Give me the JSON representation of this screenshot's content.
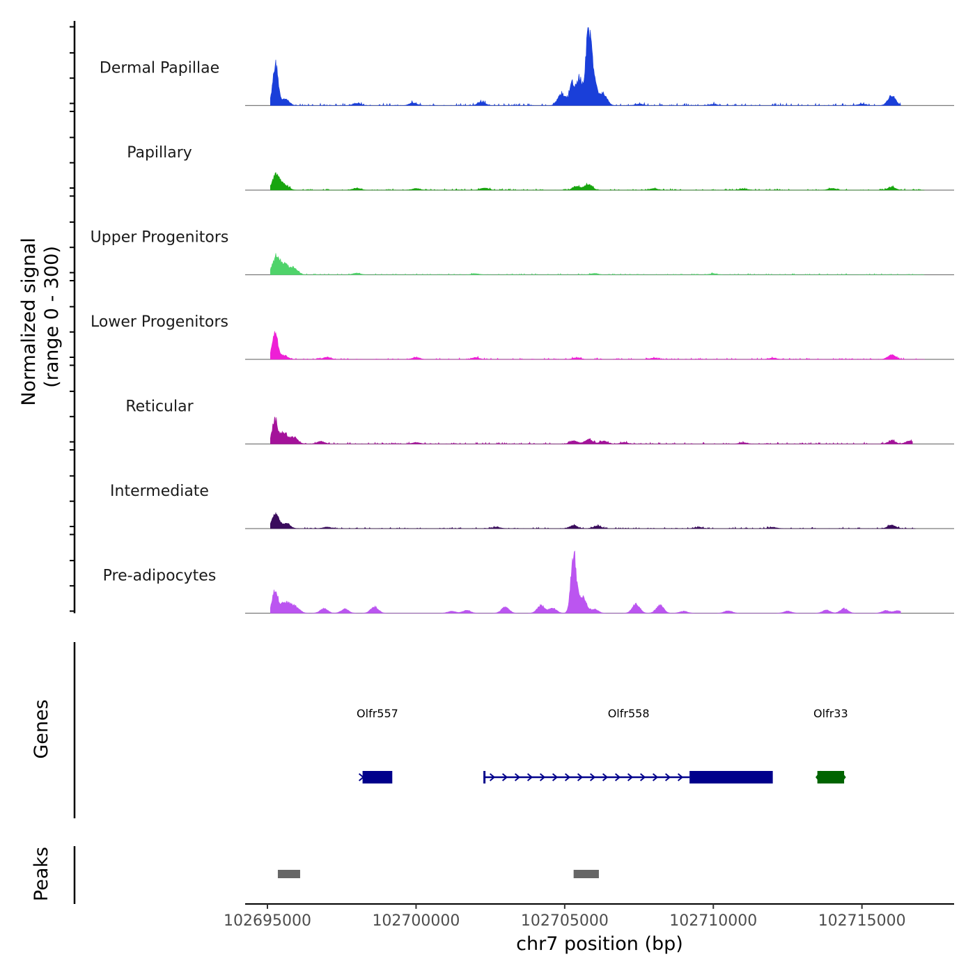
{
  "chart_data": {
    "type": "area",
    "title": "",
    "ylabel_line1": "Normalized signal",
    "ylabel_line2": "(range 0 - 300)",
    "y_range": [
      0,
      300
    ],
    "xlabel": "chr7 position (bp)",
    "xlim": [
      102694250,
      102718100
    ],
    "x_ticks": [
      102695000,
      102700000,
      102705000,
      102710000,
      102715000
    ],
    "x_tick_labels": [
      "102695000",
      "102700000",
      "102705000",
      "102710000",
      "102715000"
    ],
    "tracks": [
      {
        "name": "Dermal Papillae",
        "color": "#1a3fd9",
        "peaks": [
          [
            102695270,
            155
          ],
          [
            102695600,
            25
          ],
          [
            102698000,
            8
          ],
          [
            102699900,
            10
          ],
          [
            102702200,
            14
          ],
          [
            102704900,
            45
          ],
          [
            102705250,
            85
          ],
          [
            102705500,
            100
          ],
          [
            102705800,
            290
          ],
          [
            102706000,
            95
          ],
          [
            102706300,
            45
          ],
          [
            102707500,
            6
          ],
          [
            102710000,
            5
          ],
          [
            102715000,
            6
          ],
          [
            102716000,
            38
          ]
        ],
        "noise": 8,
        "span": [
          102695100,
          102716300
        ]
      },
      {
        "name": "Papillary",
        "color": "#18a50f",
        "peaks": [
          [
            102695300,
            60
          ],
          [
            102695600,
            18
          ],
          [
            102698000,
            8
          ],
          [
            102700000,
            6
          ],
          [
            102702300,
            8
          ],
          [
            102705400,
            15
          ],
          [
            102705800,
            22
          ],
          [
            102708000,
            6
          ],
          [
            102711000,
            5
          ],
          [
            102714000,
            7
          ],
          [
            102716000,
            12
          ]
        ],
        "noise": 5,
        "span": [
          102695100,
          102717100
        ]
      },
      {
        "name": "Upper Progenitors",
        "color": "#4fd36a",
        "peaks": [
          [
            102695300,
            70
          ],
          [
            102695600,
            35
          ],
          [
            102695900,
            25
          ],
          [
            102698000,
            6
          ],
          [
            102702000,
            4
          ],
          [
            102706000,
            5
          ],
          [
            102710000,
            4
          ]
        ],
        "noise": 4,
        "span": [
          102695100,
          102717100
        ]
      },
      {
        "name": "Lower Progenitors",
        "color": "#ee1fd6",
        "peaks": [
          [
            102695250,
            100
          ],
          [
            102695550,
            15
          ],
          [
            102697000,
            8
          ],
          [
            102700000,
            7
          ],
          [
            102702000,
            7
          ],
          [
            102705400,
            6
          ],
          [
            102708000,
            5
          ],
          [
            102712000,
            5
          ],
          [
            102716000,
            18
          ]
        ],
        "noise": 5,
        "span": [
          102695100,
          102717100
        ]
      },
      {
        "name": "Reticular",
        "color": "#a4129a",
        "peaks": [
          [
            102695250,
            90
          ],
          [
            102695550,
            45
          ],
          [
            102695900,
            25
          ],
          [
            102696800,
            10
          ],
          [
            102700000,
            6
          ],
          [
            102705300,
            12
          ],
          [
            102705800,
            18
          ],
          [
            102706300,
            12
          ],
          [
            102707000,
            6
          ],
          [
            102711000,
            5
          ],
          [
            102716000,
            12
          ],
          [
            102716600,
            12
          ]
        ],
        "noise": 6,
        "span": [
          102695100,
          102716700
        ]
      },
      {
        "name": "Intermediate",
        "color": "#3a0c5c",
        "peaks": [
          [
            102695270,
            52
          ],
          [
            102695650,
            18
          ],
          [
            102697000,
            6
          ],
          [
            102702700,
            6
          ],
          [
            102705300,
            12
          ],
          [
            102706100,
            10
          ],
          [
            102709500,
            5
          ],
          [
            102712000,
            5
          ],
          [
            102716000,
            14
          ]
        ],
        "noise": 5,
        "span": [
          102695100,
          102716800
        ]
      },
      {
        "name": "Pre-adipocytes",
        "color": "#bb55f0",
        "peaks": [
          [
            102695250,
            90
          ],
          [
            102695550,
            40
          ],
          [
            102695800,
            25
          ],
          [
            102696000,
            15
          ],
          [
            102696900,
            18
          ],
          [
            102697600,
            16
          ],
          [
            102698600,
            25
          ],
          [
            102701200,
            8
          ],
          [
            102701700,
            12
          ],
          [
            102703000,
            25
          ],
          [
            102704200,
            30
          ],
          [
            102704600,
            20
          ],
          [
            102705300,
            225
          ],
          [
            102705600,
            60
          ],
          [
            102706000,
            15
          ],
          [
            102707400,
            35
          ],
          [
            102708200,
            30
          ],
          [
            102709000,
            8
          ],
          [
            102710500,
            10
          ],
          [
            102712500,
            8
          ],
          [
            102713800,
            12
          ],
          [
            102714400,
            18
          ],
          [
            102715800,
            10
          ],
          [
            102716200,
            10
          ]
        ],
        "noise": 0,
        "span": [
          102695100,
          102716300
        ]
      }
    ],
    "genes_label": "Genes",
    "genes": [
      {
        "name": "Olfr557",
        "start": 102698200,
        "end": 102699200,
        "strand": "+",
        "color": "#00008b"
      },
      {
        "name": "Olfr558",
        "start": 102702300,
        "end": 102712000,
        "strand": "+",
        "color": "#00008b",
        "intron_start": 102702300,
        "intron_end": 102709200
      },
      {
        "name": "Olfr33",
        "start": 102713500,
        "end": 102714400,
        "strand": "-",
        "color": "#006400"
      }
    ],
    "peaks_label": "Peaks",
    "peaks": [
      {
        "start": 102695350,
        "end": 102696100
      },
      {
        "start": 102705300,
        "end": 102706150
      }
    ]
  }
}
